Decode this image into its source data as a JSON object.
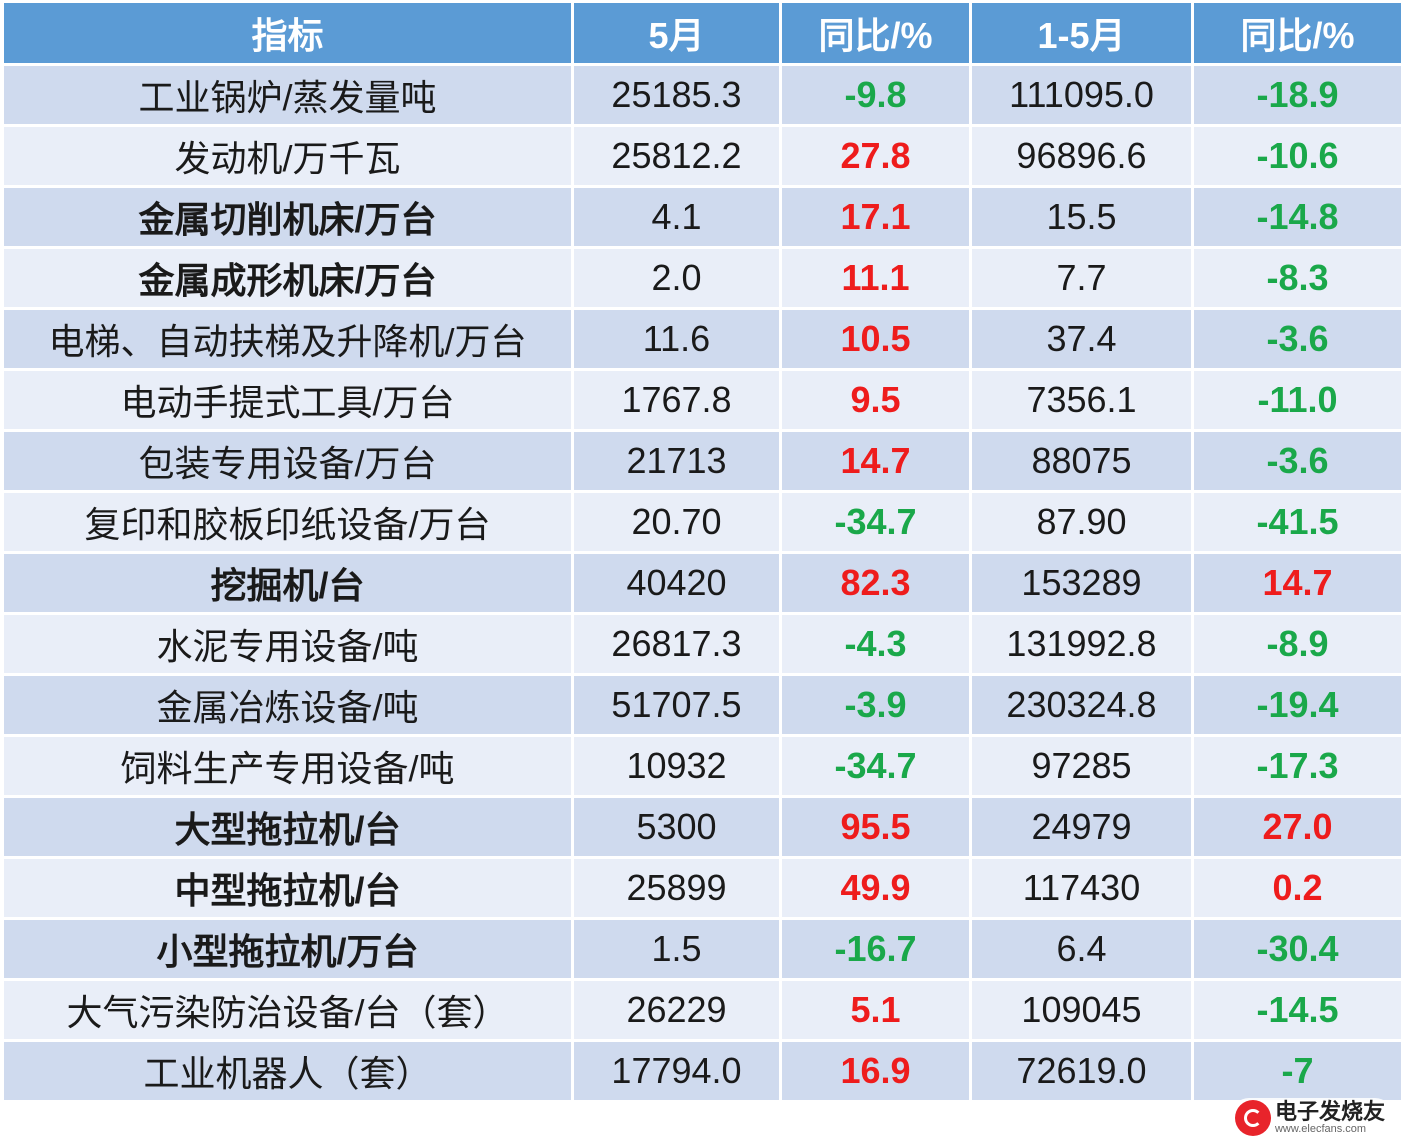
{
  "table": {
    "headers": [
      "指标",
      "5月",
      "同比/%",
      "1-5月",
      "同比/%"
    ],
    "rows": [
      {
        "name": "工业锅炉/蒸发量吨",
        "may": "25185.3",
        "may_yoy": "-9.8",
        "ytd": "111095.0",
        "ytd_yoy": "-18.9"
      },
      {
        "name": "发动机/万千瓦",
        "may": "25812.2",
        "may_yoy": "27.8",
        "ytd": "96896.6",
        "ytd_yoy": "-10.6"
      },
      {
        "name": "金属切削机床/万台",
        "may": "4.1",
        "may_yoy": "17.1",
        "ytd": "15.5",
        "ytd_yoy": "-14.8"
      },
      {
        "name": "金属成形机床/万台",
        "may": "2.0",
        "may_yoy": "11.1",
        "ytd": "7.7",
        "ytd_yoy": "-8.3"
      },
      {
        "name": "电梯、自动扶梯及升降机/万台",
        "may": "11.6",
        "may_yoy": "10.5",
        "ytd": "37.4",
        "ytd_yoy": "-3.6"
      },
      {
        "name": "电动手提式工具/万台",
        "may": "1767.8",
        "may_yoy": "9.5",
        "ytd": "7356.1",
        "ytd_yoy": "-11.0"
      },
      {
        "name": "包装专用设备/万台",
        "may": "21713",
        "may_yoy": "14.7",
        "ytd": "88075",
        "ytd_yoy": "-3.6"
      },
      {
        "name": "复印和胶板印纸设备/万台",
        "may": "20.70",
        "may_yoy": "-34.7",
        "ytd": "87.90",
        "ytd_yoy": "-41.5"
      },
      {
        "name": "挖掘机/台",
        "may": "40420",
        "may_yoy": "82.3",
        "ytd": "153289",
        "ytd_yoy": "14.7"
      },
      {
        "name": "水泥专用设备/吨",
        "may": "26817.3",
        "may_yoy": "-4.3",
        "ytd": "131992.8",
        "ytd_yoy": "-8.9"
      },
      {
        "name": "金属冶炼设备/吨",
        "may": "51707.5",
        "may_yoy": "-3.9",
        "ytd": "230324.8",
        "ytd_yoy": "-19.4"
      },
      {
        "name": "饲料生产专用设备/吨",
        "may": "10932",
        "may_yoy": "-34.7",
        "ytd": "97285",
        "ytd_yoy": "-17.3"
      },
      {
        "name": "大型拖拉机/台",
        "may": "5300",
        "may_yoy": "95.5",
        "ytd": "24979",
        "ytd_yoy": "27.0"
      },
      {
        "name": "中型拖拉机/台",
        "may": "25899",
        "may_yoy": "49.9",
        "ytd": "117430",
        "ytd_yoy": "0.2"
      },
      {
        "name": "小型拖拉机/万台",
        "may": "1.5",
        "may_yoy": "-16.7",
        "ytd": "6.4",
        "ytd_yoy": "-30.4"
      },
      {
        "name": "大气污染防治设备/台（套）",
        "may": "26229",
        "may_yoy": "5.1",
        "ytd": "109045",
        "ytd_yoy": "-14.5"
      },
      {
        "name": "工业机器人（套）",
        "may": "17794.0",
        "may_yoy": "16.9",
        "ytd": "72619.0",
        "ytd_yoy": "-7"
      }
    ]
  },
  "watermark": {
    "cn": "电子发烧友",
    "en": "www.elecfans.com"
  },
  "colors": {
    "header_bg": "#5b9bd5",
    "row_odd": "#cfdaee",
    "row_even": "#e9eef8",
    "positive": "#ee1c1c",
    "negative": "#1aa84a"
  }
}
